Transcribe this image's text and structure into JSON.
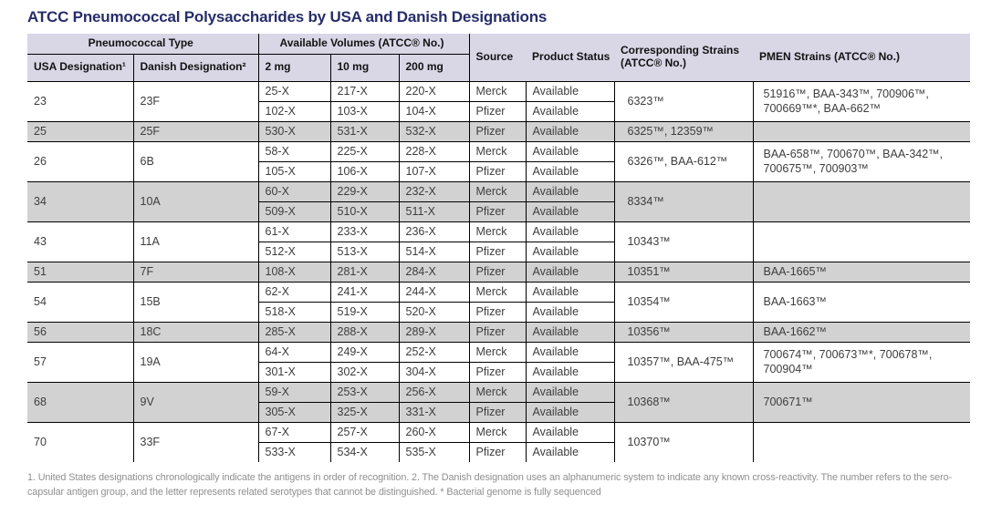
{
  "title": "ATCC Pneumococcal Polysaccharides by USA and Danish Designations",
  "colors": {
    "title_text": "#272d69",
    "header_bg": "#d9d6e6",
    "row_shaded_bg": "#d2d2d2",
    "cell_text": "#3d3d3d",
    "footnote_text": "#8f8f8f",
    "border": "#000000"
  },
  "table": {
    "headers": {
      "pneumococcal_type": "Pneumococcal Type",
      "available_volumes": "Available Volumes (ATCC® No.)",
      "usa_designation": "USA Designation¹",
      "danish_designation": "Danish Designation²",
      "vol_2mg": "2 mg",
      "vol_10mg": "10 mg",
      "vol_200mg": "200 mg",
      "source": "Source",
      "product_status": "Product Status",
      "corresponding_strains": "Corresponding Strains (ATCC® No.)",
      "pmen_strains": "PMEN Strains (ATCC® No.)"
    },
    "groups": [
      {
        "usa": "23",
        "danish": "23F",
        "shaded": false,
        "rows": [
          {
            "v2": "25-X",
            "v10": "217-X",
            "v200": "220-X",
            "source": "Merck",
            "status": "Available"
          },
          {
            "v2": "102-X",
            "v10": "103-X",
            "v200": "104-X",
            "source": "Pfizer",
            "status": "Available"
          }
        ],
        "strains": "6323™",
        "pmen": "51916™, BAA-343™, 700906™, 700669™*, BAA-662™"
      },
      {
        "usa": "25",
        "danish": "25F",
        "shaded": true,
        "rows": [
          {
            "v2": "530-X",
            "v10": "531-X",
            "v200": "532-X",
            "source": "Pfizer",
            "status": "Available"
          }
        ],
        "strains": "6325™, 12359™",
        "pmen": ""
      },
      {
        "usa": "26",
        "danish": "6B",
        "shaded": false,
        "rows": [
          {
            "v2": "58-X",
            "v10": "225-X",
            "v200": "228-X",
            "source": "Merck",
            "status": "Available"
          },
          {
            "v2": "105-X",
            "v10": "106-X",
            "v200": "107-X",
            "source": "Pfizer",
            "status": "Available"
          }
        ],
        "strains": "6326™, BAA-612™",
        "pmen": "BAA-658™, 700670™, BAA-342™, 700675™, 700903™"
      },
      {
        "usa": "34",
        "danish": "10A",
        "shaded": true,
        "rows": [
          {
            "v2": "60-X",
            "v10": "229-X",
            "v200": "232-X",
            "source": "Merck",
            "status": "Available"
          },
          {
            "v2": "509-X",
            "v10": "510-X",
            "v200": "511-X",
            "source": "Pfizer",
            "status": "Available"
          }
        ],
        "strains": "8334™",
        "pmen": ""
      },
      {
        "usa": "43",
        "danish": "11A",
        "shaded": false,
        "rows": [
          {
            "v2": "61-X",
            "v10": "233-X",
            "v200": "236-X",
            "source": "Merck",
            "status": "Available"
          },
          {
            "v2": "512-X",
            "v10": "513-X",
            "v200": "514-X",
            "source": "Pfizer",
            "status": "Available"
          }
        ],
        "strains": "10343™",
        "pmen": ""
      },
      {
        "usa": "51",
        "danish": "7F",
        "shaded": true,
        "rows": [
          {
            "v2": "108-X",
            "v10": "281-X",
            "v200": "284-X",
            "source": "Pfizer",
            "status": "Available"
          }
        ],
        "strains": "10351™",
        "pmen": "BAA-1665™"
      },
      {
        "usa": "54",
        "danish": "15B",
        "shaded": false,
        "rows": [
          {
            "v2": "62-X",
            "v10": "241-X",
            "v200": "244-X",
            "source": "Merck",
            "status": "Available"
          },
          {
            "v2": "518-X",
            "v10": "519-X",
            "v200": "520-X",
            "source": "Pfizer",
            "status": "Available"
          }
        ],
        "strains": "10354™",
        "pmen": "BAA-1663™"
      },
      {
        "usa": "56",
        "danish": "18C",
        "shaded": true,
        "rows": [
          {
            "v2": "285-X",
            "v10": "288-X",
            "v200": "289-X",
            "source": "Pfizer",
            "status": "Available"
          }
        ],
        "strains": "10356™",
        "pmen": "BAA-1662™"
      },
      {
        "usa": "57",
        "danish": "19A",
        "shaded": false,
        "rows": [
          {
            "v2": "64-X",
            "v10": "249-X",
            "v200": "252-X",
            "source": "Merck",
            "status": "Available"
          },
          {
            "v2": "301-X",
            "v10": "302-X",
            "v200": "304-X",
            "source": "Pfizer",
            "status": "Available"
          }
        ],
        "strains": "10357™, BAA-475™",
        "pmen": "700674™, 700673™*, 700678™, 700904™"
      },
      {
        "usa": "68",
        "danish": "9V",
        "shaded": true,
        "rows": [
          {
            "v2": "59-X",
            "v10": "253-X",
            "v200": "256-X",
            "source": "Merck",
            "status": "Available"
          },
          {
            "v2": "305-X",
            "v10": "325-X",
            "v200": "331-X",
            "source": "Pfizer",
            "status": "Available"
          }
        ],
        "strains": "10368™",
        "pmen": "700671™"
      },
      {
        "usa": "70",
        "danish": "33F",
        "shaded": false,
        "rows": [
          {
            "v2": "67-X",
            "v10": "257-X",
            "v200": "260-X",
            "source": "Merck",
            "status": "Available"
          },
          {
            "v2": "533-X",
            "v10": "534-X",
            "v200": "535-X",
            "source": "Pfizer",
            "status": "Available"
          }
        ],
        "strains": "10370™",
        "pmen": ""
      }
    ]
  },
  "footnote": "1. United States designations chronologically indicate the antigens in order of recognition. 2. The Danish designation uses an alphanumeric system to indicate any known cross-reactivity. The number refers to the sero-capsular antigen group, and the letter represents related serotypes that cannot be distinguished. * Bacterial genome is fully sequenced"
}
